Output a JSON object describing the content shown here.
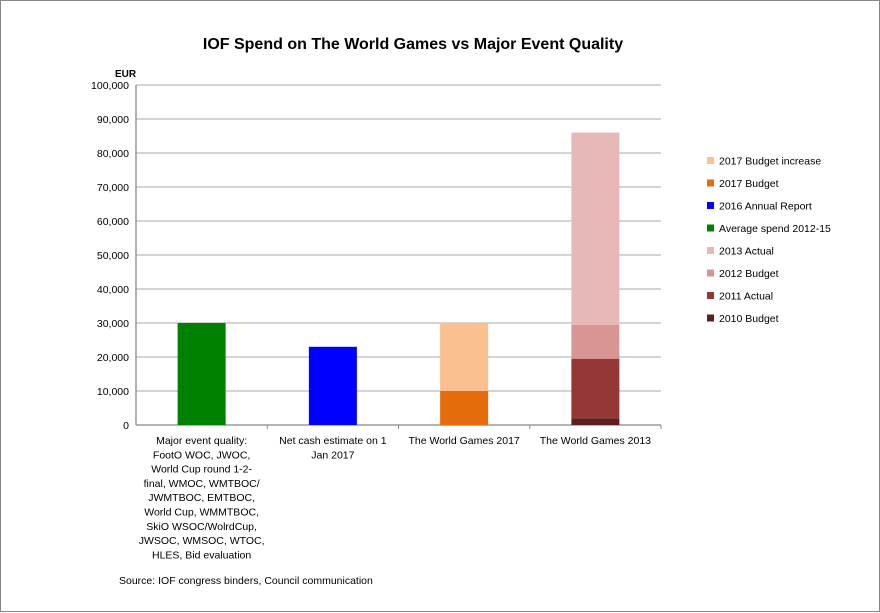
{
  "chart_data": {
    "type": "bar",
    "stacked": true,
    "title": "IOF Spend on The World Games vs Major Event Quality",
    "ylabel": "EUR",
    "xlabel": "",
    "ylim": [
      0,
      100000
    ],
    "yticks": [
      "0",
      "10,000",
      "20,000",
      "30,000",
      "40,000",
      "50,000",
      "60,000",
      "70,000",
      "80,000",
      "90,000",
      "100,000"
    ],
    "ytick_values": [
      0,
      10000,
      20000,
      30000,
      40000,
      50000,
      60000,
      70000,
      80000,
      90000,
      100000
    ],
    "grid": true,
    "legend_position": "right",
    "categories": [
      [
        "Major event quality:",
        "FootO WOC, JWOC,",
        "World Cup round 1-2-",
        "final, WMOC, WMTBOC/",
        "JWMTBOC, EMTBOC,",
        "World Cup, WMMTBOC,",
        "SkiO WSOC/WolrdCup,",
        "JWSOC, WMSOC, WTOC,",
        "HLES, Bid evaluation"
      ],
      [
        "Net cash estimate on 1",
        "Jan 2017"
      ],
      [
        "The World Games 2017"
      ],
      [
        "The World Games 2013"
      ]
    ],
    "series": [
      {
        "name": "2010 Budget",
        "color": "#5e1f1f",
        "values": [
          0,
          0,
          0,
          2000
        ]
      },
      {
        "name": "2011 Actual",
        "color": "#953735",
        "values": [
          0,
          0,
          0,
          17500
        ]
      },
      {
        "name": "2012 Budget",
        "color": "#d99594",
        "values": [
          0,
          0,
          0,
          10000
        ]
      },
      {
        "name": "2013 Actual",
        "color": "#e6b9b8",
        "values": [
          0,
          0,
          0,
          56500
        ]
      },
      {
        "name": "Average spend 2012-15",
        "color": "#008000",
        "values": [
          30000,
          0,
          0,
          0
        ]
      },
      {
        "name": "2016 Annual Report",
        "color": "#0000ff",
        "values": [
          0,
          23000,
          0,
          0
        ]
      },
      {
        "name": "2017 Budget",
        "color": "#e46c0a",
        "values": [
          0,
          0,
          10000,
          0
        ]
      },
      {
        "name": "2017 Budget increase",
        "color": "#fac090",
        "values": [
          0,
          0,
          20000,
          0
        ]
      }
    ],
    "legend_order": [
      "2017 Budget increase",
      "2017 Budget",
      "2016 Annual Report",
      "Average spend 2012-15",
      "2013 Actual",
      "2012 Budget",
      "2011 Actual",
      "2010 Budget"
    ],
    "source": "Source: IOF congress binders, Council communication"
  }
}
